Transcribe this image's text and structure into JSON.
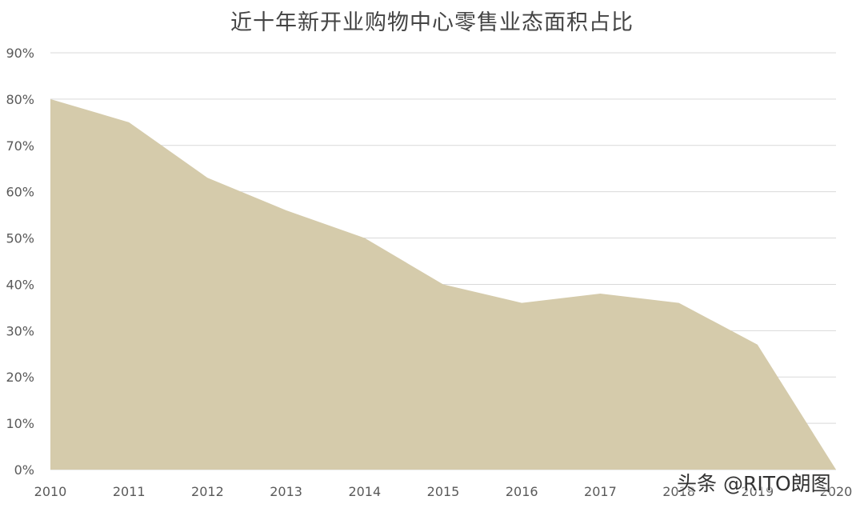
{
  "chart_data": {
    "type": "area",
    "title": "近十年新开业购物中心零售业态面积占比",
    "x": [
      "2010",
      "2011",
      "2012",
      "2013",
      "2014",
      "2015",
      "2016",
      "2017",
      "2018",
      "2019",
      "2020"
    ],
    "series": [
      {
        "values": [
          80,
          75,
          63,
          56,
          50,
          40,
          36,
          38,
          36,
          27,
          0
        ]
      }
    ],
    "ylim": [
      0,
      90
    ],
    "y_ticks": [
      0,
      10,
      20,
      30,
      40,
      50,
      60,
      70,
      80,
      90
    ],
    "y_tick_labels": [
      "0%",
      "10%",
      "20%",
      "30%",
      "40%",
      "50%",
      "60%",
      "70%",
      "80%",
      "90%"
    ],
    "xlabel": "",
    "ylabel": "",
    "grid": true,
    "legend": "none",
    "colors": {
      "area_fill": "#d5cbab",
      "grid": "#d9d9d9",
      "axis_text": "#595959",
      "title_text": "#444444"
    }
  },
  "watermark": "头条 @RITO朗图"
}
